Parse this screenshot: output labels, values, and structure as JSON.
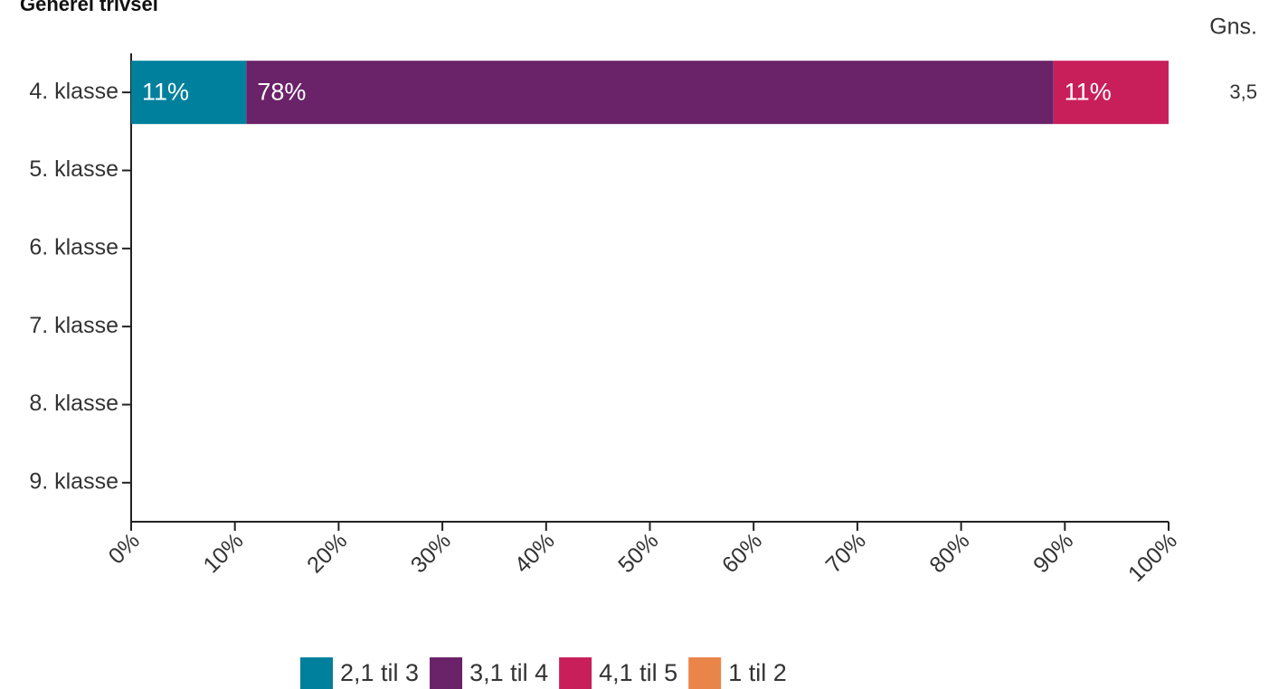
{
  "chart_data": {
    "type": "stacked_barh",
    "title": "Generel trivsel",
    "categories": [
      "4. klasse",
      "5. klasse",
      "6. klasse",
      "7. klasse",
      "8. klasse",
      "9. klasse"
    ],
    "series": [
      {
        "name": "2,1 til 3",
        "color": "#00809d",
        "values": [
          11.1,
          null,
          null,
          null,
          null,
          null
        ],
        "value_labels": [
          "11%",
          null,
          null,
          null,
          null,
          null
        ]
      },
      {
        "name": "3,1 til 4",
        "color": "#6a2269",
        "values": [
          77.8,
          null,
          null,
          null,
          null,
          null
        ],
        "value_labels": [
          "78%",
          null,
          null,
          null,
          null,
          null
        ]
      },
      {
        "name": "4,1 til 5",
        "color": "#c81f5a",
        "values": [
          11.1,
          null,
          null,
          null,
          null,
          null
        ],
        "value_labels": [
          "11%",
          null,
          null,
          null,
          null,
          null
        ]
      },
      {
        "name": "1 til 2",
        "color": "#ea8549",
        "values": [
          null,
          null,
          null,
          null,
          null,
          null
        ]
      }
    ],
    "xlim": [
      0,
      100
    ],
    "xticks": [
      {
        "value": 0,
        "label": "0%"
      },
      {
        "value": 10,
        "label": "10%"
      },
      {
        "value": 20,
        "label": "20%"
      },
      {
        "value": 30,
        "label": "30%"
      },
      {
        "value": 40,
        "label": "40%"
      },
      {
        "value": 50,
        "label": "50%"
      },
      {
        "value": 60,
        "label": "60%"
      },
      {
        "value": 70,
        "label": "70%"
      },
      {
        "value": 80,
        "label": "80%"
      },
      {
        "value": 90,
        "label": "90%"
      },
      {
        "value": 100,
        "label": "100%"
      }
    ],
    "average_header": "Gns.",
    "average_labels": [
      "3,5",
      null,
      null,
      null,
      null,
      null
    ],
    "legend": "bottom"
  }
}
